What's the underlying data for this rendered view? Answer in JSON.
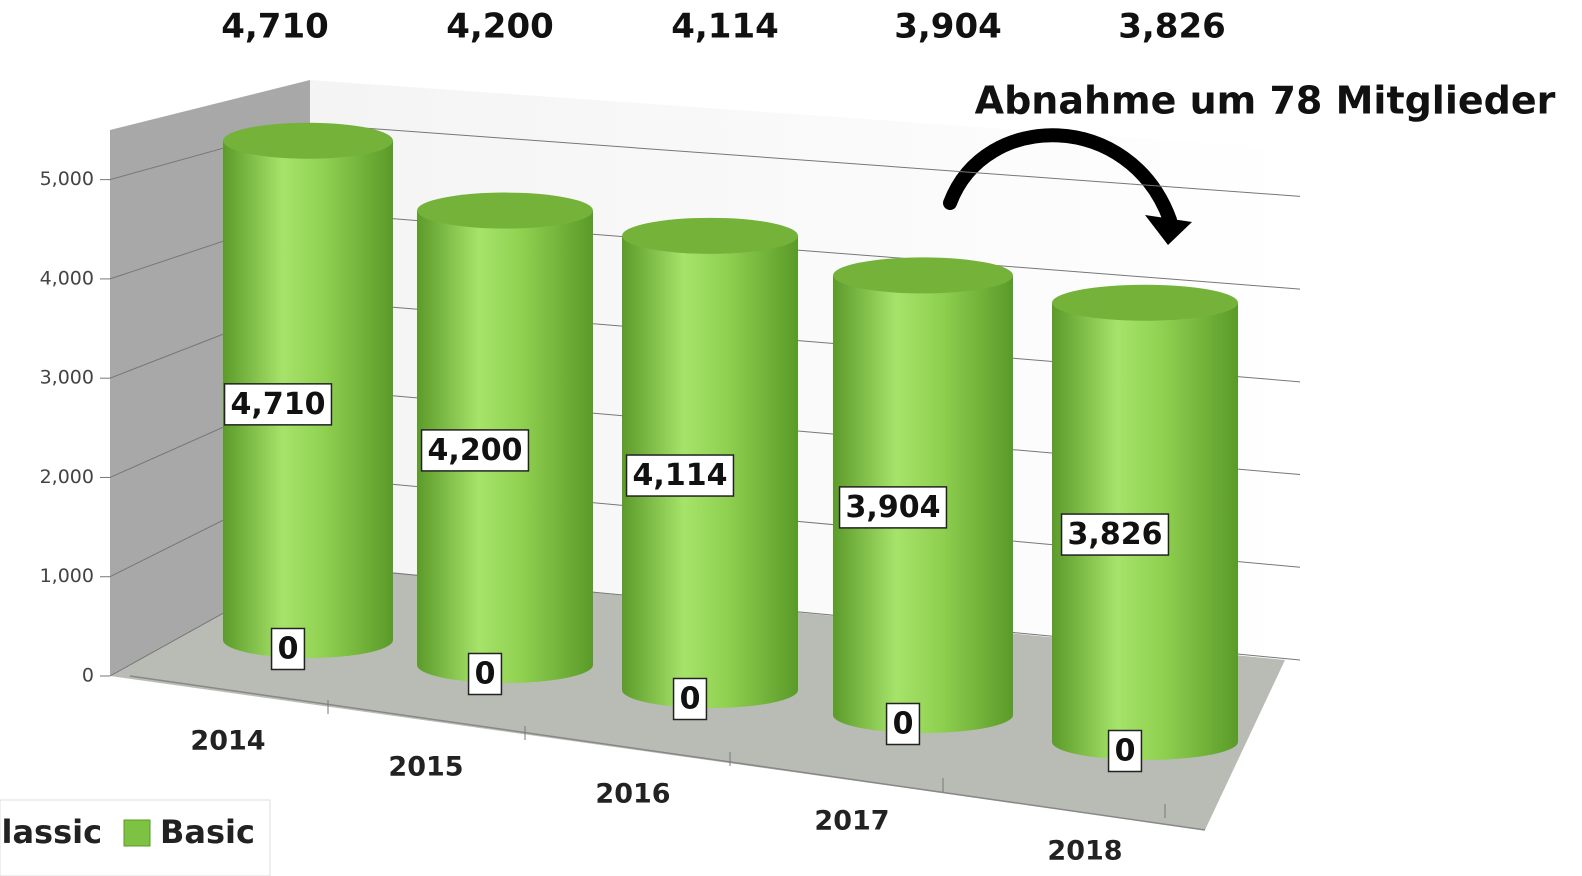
{
  "chart_data": {
    "type": "bar3d",
    "annotation": "Abnahme um 78 Mitglieder",
    "categories": [
      "2014",
      "2015",
      "2016",
      "2017",
      "2018"
    ],
    "totals": [
      4710,
      4200,
      4114,
      3904,
      3826
    ],
    "total_labels": [
      "4,710",
      "4,200",
      "4,114",
      "3,904",
      "3,826"
    ],
    "series": [
      {
        "name": "Classic",
        "color": "#3f6fb5",
        "values": [
          0,
          0,
          0,
          0,
          0
        ]
      },
      {
        "name": "Basic",
        "color": "#7dc242",
        "values": [
          4710,
          4200,
          4114,
          3904,
          3826
        ],
        "value_labels": [
          "4,710",
          "4,200",
          "4,114",
          "3,904",
          "3,826"
        ]
      }
    ],
    "ylim": [
      0,
      5500
    ],
    "yticks": [
      0,
      {
        "value": 1000,
        "label": "1,000"
      },
      {
        "value": 2000,
        "label": "2,000"
      },
      {
        "value": 3000,
        "label": "3,000"
      },
      {
        "value": 4000,
        "label": "4,000"
      },
      {
        "value": 5000,
        "label": "5,000"
      }
    ],
    "grid": true
  }
}
